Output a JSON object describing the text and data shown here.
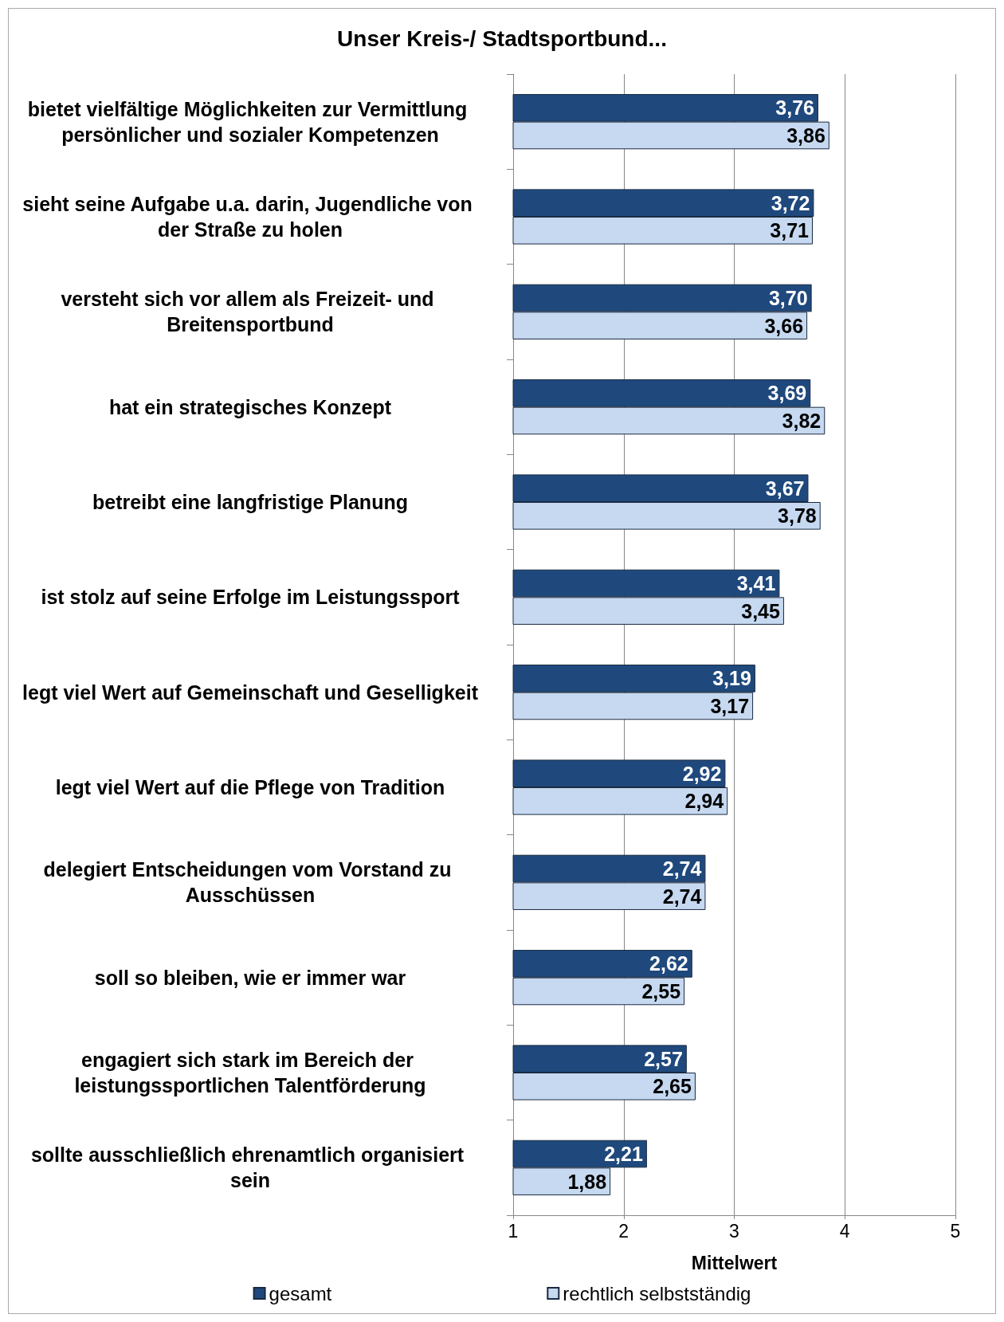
{
  "chart_data": {
    "type": "bar",
    "orientation": "horizontal",
    "title": "Unser Kreis-/ Stadtsportbund...",
    "xlabel": "Mittelwert",
    "categories": [
      "bietet vielfältige Möglichkeiten zur Vermittlung persönlicher und sozialer Kompetenzen",
      "sieht seine Aufgabe u.a. darin, Jugendliche von der Straße zu holen",
      "versteht sich vor allem als Freizeit- und Breitensportbund",
      "hat ein strategisches Konzept",
      "betreibt eine langfristige Planung",
      "ist stolz auf seine Erfolge im Leistungssport",
      "legt viel Wert auf Gemeinschaft und Geselligkeit",
      "legt viel Wert auf die Pflege von Tradition",
      "delegiert Entscheidungen vom Vorstand zu Ausschüssen",
      "soll so bleiben, wie er immer war",
      "engagiert sich stark im Bereich der leistungssportlichen Talentförderung",
      "sollte ausschließlich ehrenamtlich organisiert sein"
    ],
    "series": [
      {
        "name": "gesamt",
        "color": "#1f497d",
        "values": [
          3.76,
          3.72,
          3.7,
          3.69,
          3.67,
          3.41,
          3.19,
          2.92,
          2.74,
          2.62,
          2.57,
          2.21
        ],
        "value_labels": [
          "3,76",
          "3,72",
          "3,70",
          "3,69",
          "3,67",
          "3,41",
          "3,19",
          "2,92",
          "2,74",
          "2,62",
          "2,57",
          "2,21"
        ]
      },
      {
        "name": "rechtlich selbstständig",
        "color": "#c6d9f1",
        "values": [
          3.86,
          3.71,
          3.66,
          3.82,
          3.78,
          3.45,
          3.17,
          2.94,
          2.74,
          2.55,
          2.65,
          1.88
        ],
        "value_labels": [
          "3,86",
          "3,71",
          "3,66",
          "3,82",
          "3,78",
          "3,45",
          "3,17",
          "2,94",
          "2,74",
          "2,55",
          "2,65",
          "1,88"
        ]
      }
    ],
    "xlim": [
      1,
      5
    ],
    "xticks": [
      1,
      2,
      3,
      4,
      5
    ],
    "grid": "x",
    "legend": "bottom"
  }
}
